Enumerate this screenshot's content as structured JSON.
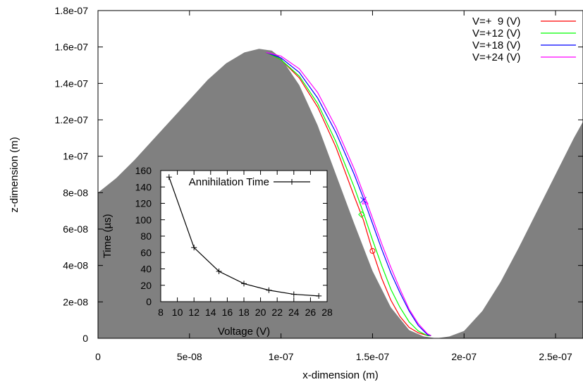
{
  "chart_data": [
    {
      "type": "line",
      "xlabel": "x-dimension (m)",
      "ylabel": "z-dimension (m)",
      "xlim": [
        0,
        2.65e-07
      ],
      "ylim": [
        0,
        1.8e-07
      ],
      "x_ticks": [
        0,
        5e-08,
        1e-07,
        1.5e-07,
        2e-07,
        2.5e-07
      ],
      "x_tick_labels": [
        "0",
        "5e-08",
        "1e-07",
        "1.5e-07",
        "2e-07",
        "2.5e-07"
      ],
      "y_ticks": [
        0,
        2e-08,
        4e-08,
        6e-08,
        8e-08,
        1e-07,
        1.2e-07,
        1.4e-07,
        1.6e-07,
        1.8e-07
      ],
      "y_tick_labels": [
        "0",
        "2e-08",
        "4e-08",
        "6e-08",
        "8e-08",
        "1e-07",
        "1.2e-07",
        "1.4e-07",
        "1.6e-07",
        "1.8e-07"
      ],
      "legend_position": "top-right",
      "surface": {
        "fill": "#808080",
        "x": [
          0,
          1e-08,
          2e-08,
          3e-08,
          4e-08,
          5e-08,
          6e-08,
          7e-08,
          8e-08,
          8.8e-08,
          9.5e-08,
          1e-07,
          1.1e-07,
          1.2e-07,
          1.3e-07,
          1.4e-07,
          1.5e-07,
          1.6e-07,
          1.7e-07,
          1.78e-07,
          1.85e-07,
          1.92e-07,
          2e-07,
          2.1e-07,
          2.2e-07,
          2.3e-07,
          2.4e-07,
          2.5e-07,
          2.6e-07,
          2.65e-07
        ],
        "z": [
          8e-08,
          8.8e-08,
          9.8e-08,
          1.09e-07,
          1.2e-07,
          1.31e-07,
          1.42e-07,
          1.51e-07,
          1.57e-07,
          1.59e-07,
          1.58e-07,
          1.54e-07,
          1.39e-07,
          1.17e-07,
          9e-08,
          6.3e-08,
          3.7e-08,
          1.7e-08,
          4.5e-09,
          1e-09,
          0,
          1e-09,
          4e-09,
          1.5e-08,
          3.1e-08,
          5e-08,
          7e-08,
          9e-08,
          1.1e-07,
          1.19e-07
        ]
      },
      "series": [
        {
          "name": "V=+  9 (V)",
          "color": "#ff0000",
          "x": [
            9.2e-08,
            1e-07,
            1.1e-07,
            1.2e-07,
            1.3e-07,
            1.4e-07,
            1.45e-07,
            1.5e-07,
            1.55e-07,
            1.6e-07,
            1.65e-07,
            1.7e-07,
            1.75e-07,
            1.8e-07,
            1.82e-07
          ],
          "z": [
            1.57e-07,
            1.53e-07,
            1.43e-07,
            1.27e-07,
            1.05e-07,
            7.8e-08,
            6.5e-08,
            4.8e-08,
            3.3e-08,
            2.1e-08,
            1.2e-08,
            6e-09,
            3e-09,
            1.5e-09,
            1.5e-09
          ],
          "marker": {
            "symbol": "circle",
            "x": 1.5e-07,
            "z": 4.8e-08
          }
        },
        {
          "name": "V=+12 (V)",
          "color": "#00ff00",
          "x": [
            9.2e-08,
            1e-07,
            1.1e-07,
            1.2e-07,
            1.3e-07,
            1.4e-07,
            1.45e-07,
            1.5e-07,
            1.55e-07,
            1.6e-07,
            1.65e-07,
            1.7e-07,
            1.75e-07,
            1.8e-07,
            1.82e-07
          ],
          "z": [
            1.57e-07,
            1.53e-07,
            1.44e-07,
            1.29e-07,
            1.08e-07,
            8.3e-08,
            6.9e-08,
            5.4e-08,
            4e-08,
            2.7e-08,
            1.7e-08,
            9e-09,
            4e-09,
            1.5e-09,
            1.5e-09
          ],
          "marker": {
            "symbol": "diamond",
            "x": 1.44e-07,
            "z": 6.8e-08
          }
        },
        {
          "name": "V=+18 (V)",
          "color": "#0000ff",
          "x": [
            9.2e-08,
            1e-07,
            1.1e-07,
            1.2e-07,
            1.3e-07,
            1.4e-07,
            1.45e-07,
            1.5e-07,
            1.55e-07,
            1.6e-07,
            1.65e-07,
            1.7e-07,
            1.75e-07,
            1.8e-07,
            1.82e-07
          ],
          "z": [
            1.57e-07,
            1.54e-07,
            1.46e-07,
            1.32e-07,
            1.13e-07,
            9e-08,
            7.7e-08,
            6.3e-08,
            4.9e-08,
            3.6e-08,
            2.5e-08,
            1.5e-08,
            7e-09,
            2e-09,
            1.5e-09
          ],
          "marker": {
            "symbol": "cross",
            "x": 1.45e-07,
            "z": 7.6e-08
          }
        },
        {
          "name": "V=+24 (V)",
          "color": "#ff00ff",
          "x": [
            9.2e-08,
            1e-07,
            1.1e-07,
            1.2e-07,
            1.3e-07,
            1.4e-07,
            1.46e-07,
            1.5e-07,
            1.55e-07,
            1.6e-07,
            1.65e-07,
            1.7e-07,
            1.75e-07,
            1.8e-07,
            1.82e-07
          ],
          "z": [
            1.57e-07,
            1.55e-07,
            1.48e-07,
            1.35e-07,
            1.16e-07,
            9.3e-08,
            7.7e-08,
            6.6e-08,
            5.2e-08,
            3.9e-08,
            2.7e-08,
            1.6e-08,
            8e-09,
            2.5e-09,
            1.5e-09
          ],
          "marker": {
            "symbol": "triangle",
            "x": 1.46e-07,
            "z": 7.5e-08
          }
        }
      ]
    },
    {
      "type": "line",
      "xlabel": "Voltage (V)",
      "ylabel": "Time (µs)",
      "xlim": [
        8,
        28
      ],
      "ylim": [
        0,
        160
      ],
      "x_ticks": [
        8,
        10,
        12,
        14,
        16,
        18,
        20,
        22,
        24,
        26,
        28
      ],
      "x_tick_labels": [
        "8",
        "10",
        "12",
        "14",
        "16",
        "18",
        "20",
        "22",
        "24",
        "26",
        "28"
      ],
      "y_ticks": [
        0,
        20,
        40,
        60,
        80,
        100,
        120,
        140,
        160
      ],
      "y_tick_labels": [
        "0",
        "20",
        "40",
        "60",
        "80",
        "100",
        "120",
        "140",
        "160"
      ],
      "legend_position": "top-right",
      "series": [
        {
          "name": "Annihilation Time",
          "color": "#000000",
          "x": [
            9,
            12,
            15,
            18,
            21,
            24,
            27
          ],
          "y": [
            152,
            66,
            37,
            22,
            14,
            9,
            7
          ]
        }
      ]
    }
  ]
}
